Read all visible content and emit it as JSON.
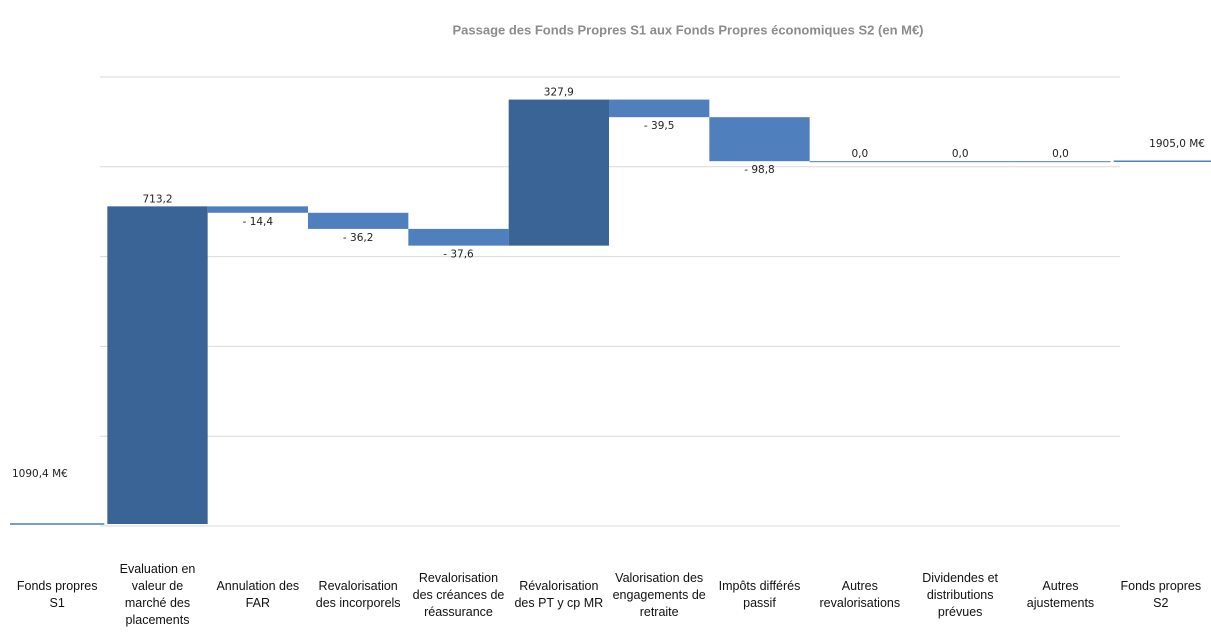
{
  "chart_data": {
    "type": "waterfall",
    "title": "Passage des Fonds Propres S1 aux Fonds Propres économiques S2 (en M€)",
    "categories": [
      "Fonds propres S1",
      "Evaluation en valeur de marché des placements",
      "Annulation des FAR",
      "Revalorisation des incorporels",
      "Revalorisation des créances de réassurance",
      "Révalorisation des PT y cp MR",
      "Valorisation des engagements de retraite",
      "Impôts différés passif",
      "Autres revalorisations",
      "Dividendes et distributions prévues",
      "Autres ajustements",
      "Fonds propres S2"
    ],
    "values": [
      1090.4,
      713.2,
      -14.4,
      -36.2,
      -37.6,
      327.9,
      -39.5,
      -98.8,
      0,
      0,
      0,
      1905.0
    ],
    "value_labels": [
      "1090,4 M€",
      "713,2",
      "- 14,4",
      "- 36,2",
      "- 37,6",
      "327,9",
      "- 39,5",
      "- 98,8",
      "0,0",
      "0,0",
      "0,0",
      "1905,0 M€"
    ],
    "totals": [
      0,
      11
    ],
    "increase_color": "#3b6496",
    "decrease_color": "#4f7fbc",
    "total_color": "#4f7fbc",
    "ylim": [
      1086,
      2094
    ],
    "yticks": [
      1086,
      1287.6,
      1489.2,
      1690.8,
      1892.4,
      2094
    ],
    "grid": true
  }
}
